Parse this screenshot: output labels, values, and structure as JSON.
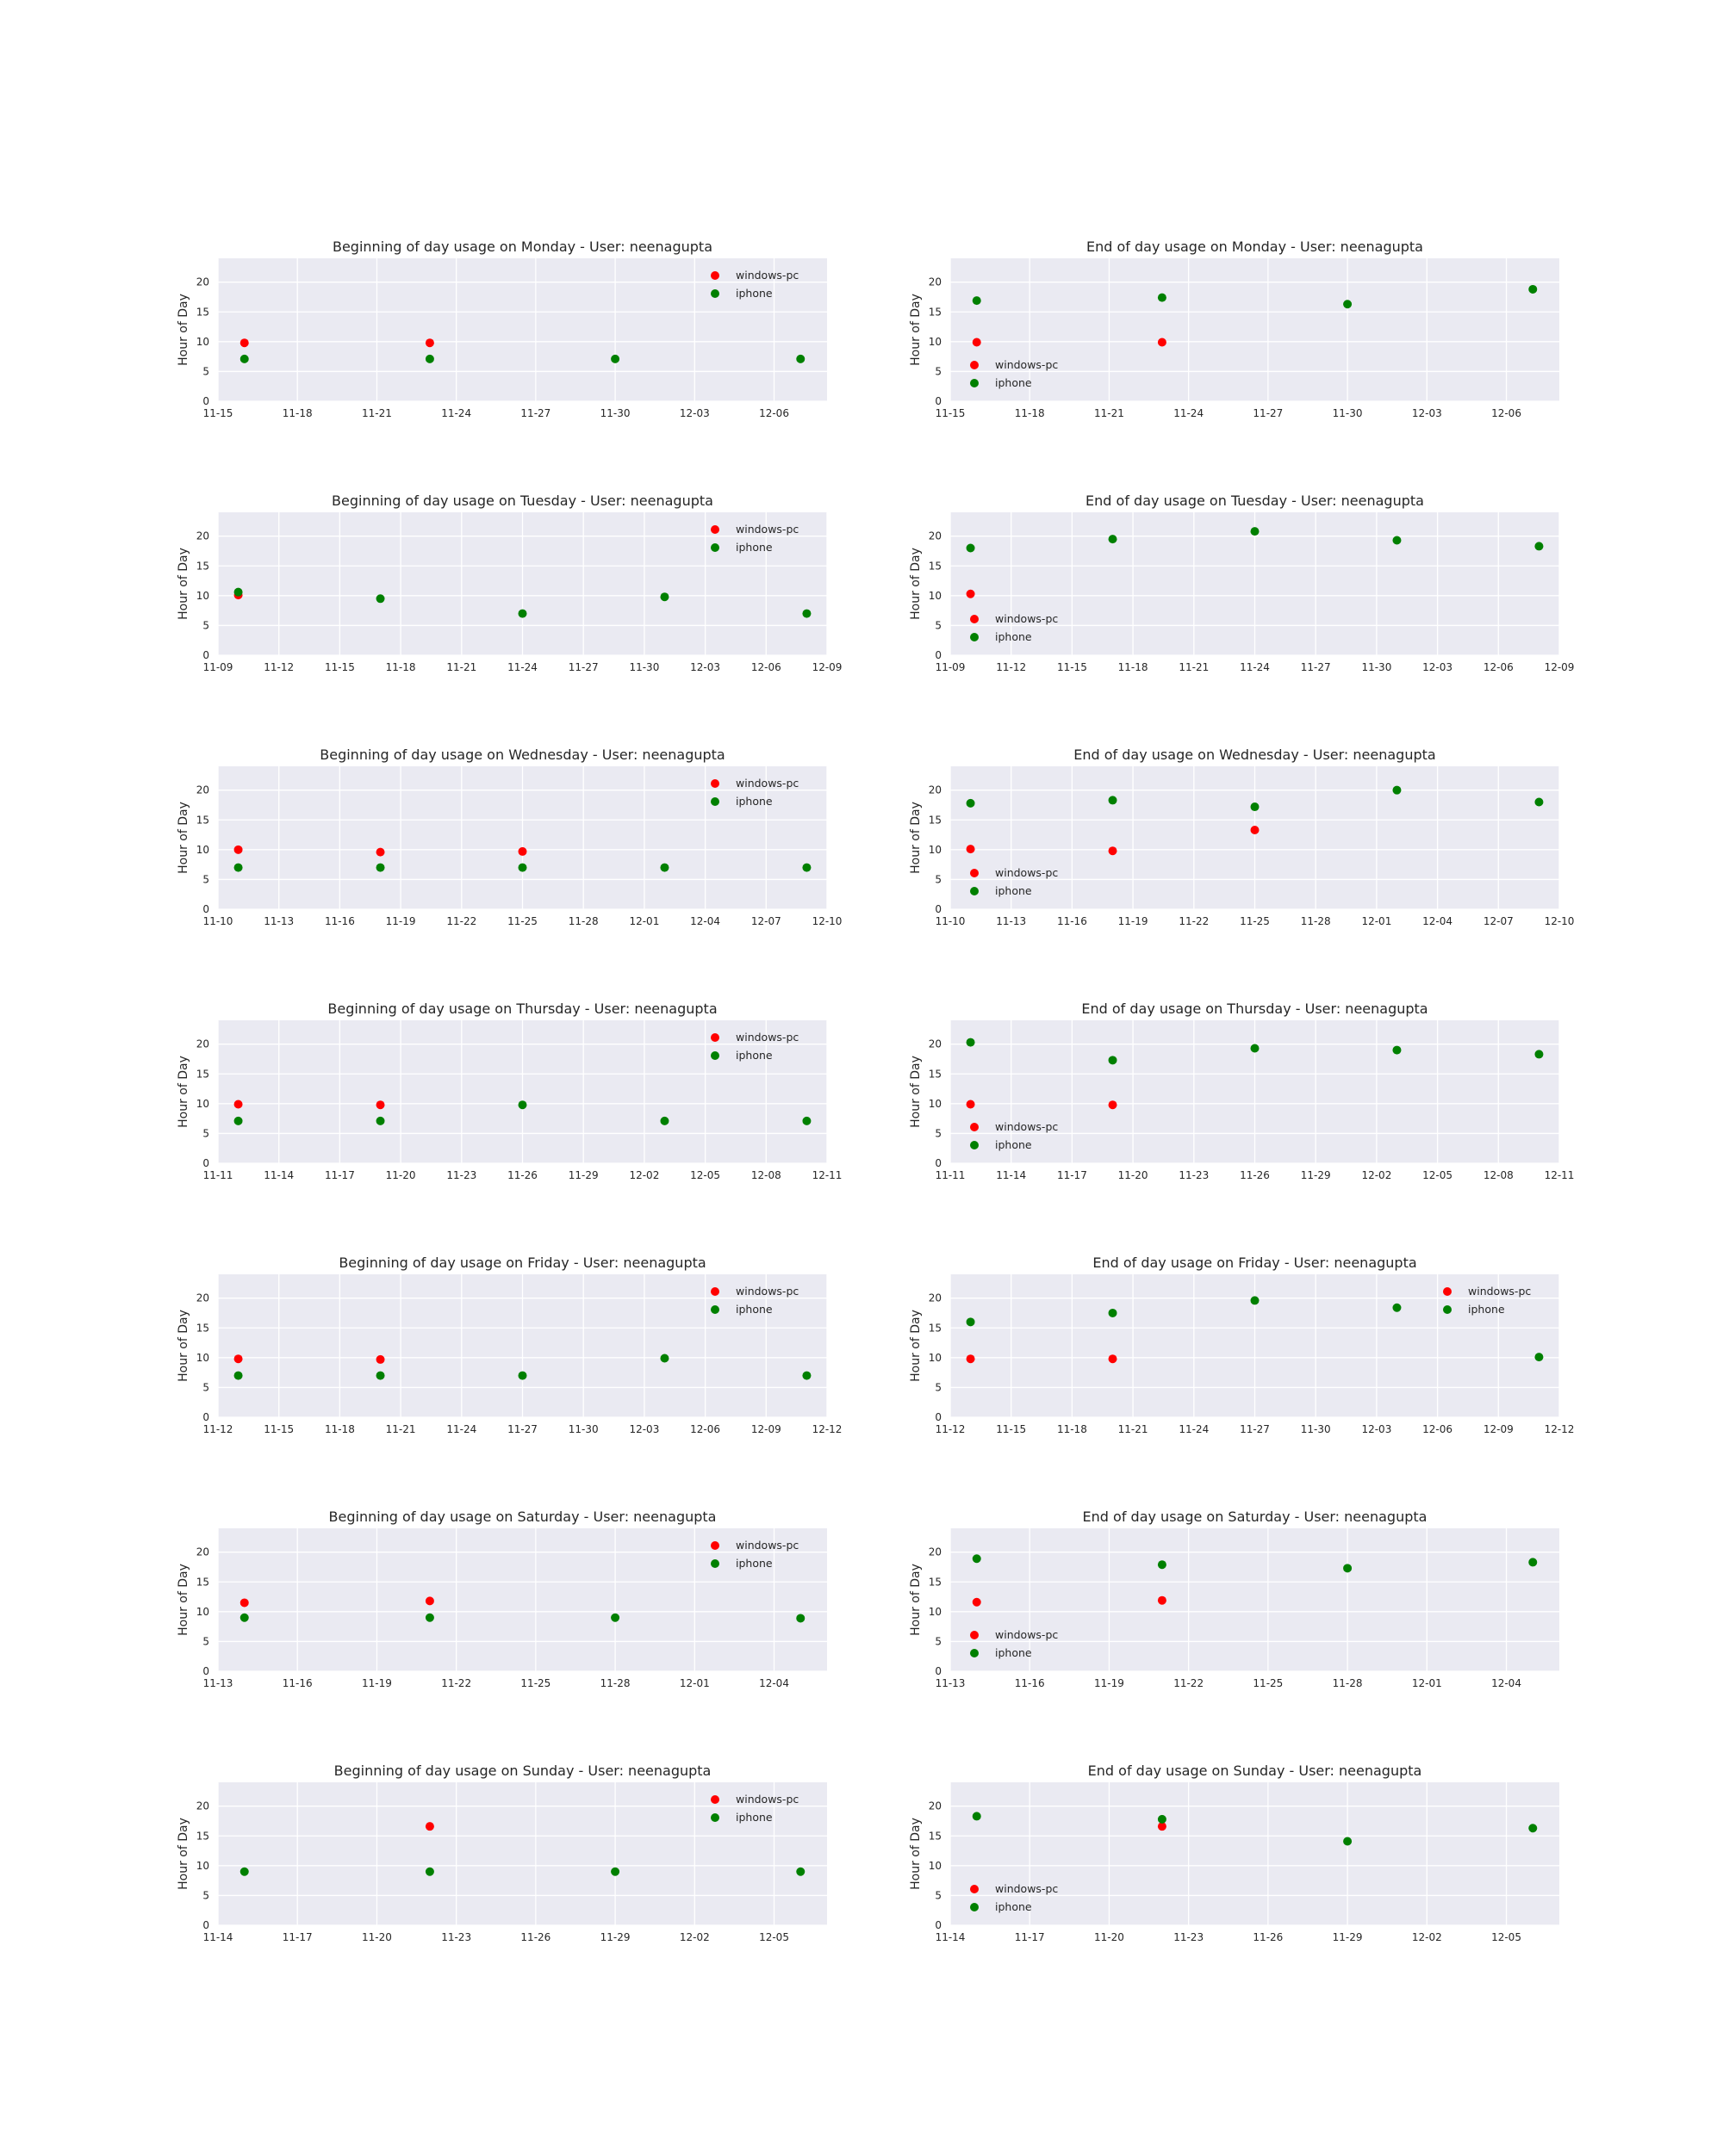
{
  "colors": {
    "windows-pc": "#ff0000",
    "iphone": "#008000",
    "panel_bg": "#eaeaf2",
    "grid": "#ffffff"
  },
  "chart_data": [
    {
      "type": "scatter",
      "title": "Beginning of day usage on Monday - User: neenagupta",
      "xlabel": "",
      "ylabel": "Hour of Day",
      "ylim": [
        0,
        24
      ],
      "yticks": [
        0,
        5,
        10,
        15,
        20
      ],
      "xlim": [
        "11-15",
        "12-08"
      ],
      "xticks": [
        "11-15",
        "11-18",
        "11-21",
        "11-24",
        "11-27",
        "11-30",
        "12-03",
        "12-06"
      ],
      "legend": "top-right",
      "grid": true,
      "series": [
        {
          "name": "windows-pc",
          "color": "#ff0000",
          "x": [
            "11-16",
            "11-23"
          ],
          "y": [
            9.8,
            9.8
          ]
        },
        {
          "name": "iphone",
          "color": "#008000",
          "x": [
            "11-16",
            "11-23",
            "11-30",
            "12-07"
          ],
          "y": [
            7.1,
            7.1,
            7.1,
            7.1
          ]
        }
      ]
    },
    {
      "type": "scatter",
      "title": "End of day usage on Monday - User: neenagupta",
      "xlabel": "",
      "ylabel": "Hour of Day",
      "ylim": [
        0,
        24
      ],
      "yticks": [
        0,
        5,
        10,
        15,
        20
      ],
      "xlim": [
        "11-15",
        "12-08"
      ],
      "xticks": [
        "11-15",
        "11-18",
        "11-21",
        "11-24",
        "11-27",
        "11-30",
        "12-03",
        "12-06"
      ],
      "legend": "bottom-left",
      "grid": true,
      "series": [
        {
          "name": "windows-pc",
          "color": "#ff0000",
          "x": [
            "11-16",
            "11-23"
          ],
          "y": [
            9.9,
            9.9
          ]
        },
        {
          "name": "iphone",
          "color": "#008000",
          "x": [
            "11-16",
            "11-23",
            "11-30",
            "12-07"
          ],
          "y": [
            16.9,
            17.4,
            16.3,
            18.8
          ]
        }
      ]
    },
    {
      "type": "scatter",
      "title": "Beginning of day usage on Tuesday - User: neenagupta",
      "xlabel": "",
      "ylabel": "Hour of Day",
      "ylim": [
        0,
        24
      ],
      "yticks": [
        0,
        5,
        10,
        15,
        20
      ],
      "xlim": [
        "11-09",
        "12-09"
      ],
      "xticks": [
        "11-09",
        "11-12",
        "11-15",
        "11-18",
        "11-21",
        "11-24",
        "11-27",
        "11-30",
        "12-03",
        "12-06",
        "12-09"
      ],
      "legend": "top-right",
      "grid": true,
      "series": [
        {
          "name": "windows-pc",
          "color": "#ff0000",
          "x": [
            "11-10"
          ],
          "y": [
            10.1
          ]
        },
        {
          "name": "iphone",
          "color": "#008000",
          "x": [
            "11-10",
            "11-17",
            "11-24",
            "12-01",
            "12-08"
          ],
          "y": [
            10.6,
            9.5,
            7.0,
            9.8,
            7.0
          ]
        }
      ]
    },
    {
      "type": "scatter",
      "title": "End of day usage on Tuesday - User: neenagupta",
      "xlabel": "",
      "ylabel": "Hour of Day",
      "ylim": [
        0,
        24
      ],
      "yticks": [
        0,
        5,
        10,
        15,
        20
      ],
      "xlim": [
        "11-09",
        "12-09"
      ],
      "xticks": [
        "11-09",
        "11-12",
        "11-15",
        "11-18",
        "11-21",
        "11-24",
        "11-27",
        "11-30",
        "12-03",
        "12-06",
        "12-09"
      ],
      "legend": "bottom-left",
      "grid": true,
      "series": [
        {
          "name": "windows-pc",
          "color": "#ff0000",
          "x": [
            "11-10"
          ],
          "y": [
            10.3
          ]
        },
        {
          "name": "iphone",
          "color": "#008000",
          "x": [
            "11-10",
            "11-17",
            "11-24",
            "12-01",
            "12-08"
          ],
          "y": [
            18.0,
            19.5,
            20.8,
            19.3,
            18.3
          ]
        }
      ]
    },
    {
      "type": "scatter",
      "title": "Beginning of day usage on Wednesday - User: neenagupta",
      "xlabel": "",
      "ylabel": "Hour of Day",
      "ylim": [
        0,
        24
      ],
      "yticks": [
        0,
        5,
        10,
        15,
        20
      ],
      "xlim": [
        "11-10",
        "12-10"
      ],
      "xticks": [
        "11-10",
        "11-13",
        "11-16",
        "11-19",
        "11-22",
        "11-25",
        "11-28",
        "12-01",
        "12-04",
        "12-07",
        "12-10"
      ],
      "legend": "top-right",
      "grid": true,
      "series": [
        {
          "name": "windows-pc",
          "color": "#ff0000",
          "x": [
            "11-11",
            "11-18",
            "11-25"
          ],
          "y": [
            10.0,
            9.6,
            9.7
          ]
        },
        {
          "name": "iphone",
          "color": "#008000",
          "x": [
            "11-11",
            "11-18",
            "11-25",
            "12-02",
            "12-09"
          ],
          "y": [
            7.0,
            7.0,
            7.0,
            7.0,
            7.0
          ]
        }
      ]
    },
    {
      "type": "scatter",
      "title": "End of day usage on Wednesday - User: neenagupta",
      "xlabel": "",
      "ylabel": "Hour of Day",
      "ylim": [
        0,
        24
      ],
      "yticks": [
        0,
        5,
        10,
        15,
        20
      ],
      "xlim": [
        "11-10",
        "12-10"
      ],
      "xticks": [
        "11-10",
        "11-13",
        "11-16",
        "11-19",
        "11-22",
        "11-25",
        "11-28",
        "12-01",
        "12-04",
        "12-07",
        "12-10"
      ],
      "legend": "bottom-left",
      "grid": true,
      "series": [
        {
          "name": "windows-pc",
          "color": "#ff0000",
          "x": [
            "11-11",
            "11-18",
            "11-25"
          ],
          "y": [
            10.1,
            9.8,
            13.3
          ]
        },
        {
          "name": "iphone",
          "color": "#008000",
          "x": [
            "11-11",
            "11-18",
            "11-25",
            "12-02",
            "12-09"
          ],
          "y": [
            17.8,
            18.3,
            17.2,
            20.0,
            18.0
          ]
        }
      ]
    },
    {
      "type": "scatter",
      "title": "Beginning of day usage on Thursday - User: neenagupta",
      "xlabel": "",
      "ylabel": "Hour of Day",
      "ylim": [
        0,
        24
      ],
      "yticks": [
        0,
        5,
        10,
        15,
        20
      ],
      "xlim": [
        "11-11",
        "12-11"
      ],
      "xticks": [
        "11-11",
        "11-14",
        "11-17",
        "11-20",
        "11-23",
        "11-26",
        "11-29",
        "12-02",
        "12-05",
        "12-08",
        "12-11"
      ],
      "legend": "top-right",
      "grid": true,
      "series": [
        {
          "name": "windows-pc",
          "color": "#ff0000",
          "x": [
            "11-12",
            "11-19"
          ],
          "y": [
            9.9,
            9.8
          ]
        },
        {
          "name": "iphone",
          "color": "#008000",
          "x": [
            "11-12",
            "11-19",
            "11-26",
            "12-03",
            "12-10"
          ],
          "y": [
            7.1,
            7.1,
            9.8,
            7.1,
            7.1
          ]
        }
      ]
    },
    {
      "type": "scatter",
      "title": "End of day usage on Thursday - User: neenagupta",
      "xlabel": "",
      "ylabel": "Hour of Day",
      "ylim": [
        0,
        24
      ],
      "yticks": [
        0,
        5,
        10,
        15,
        20
      ],
      "xlim": [
        "11-11",
        "12-11"
      ],
      "xticks": [
        "11-11",
        "11-14",
        "11-17",
        "11-20",
        "11-23",
        "11-26",
        "11-29",
        "12-02",
        "12-05",
        "12-08",
        "12-11"
      ],
      "legend": "bottom-left",
      "grid": true,
      "series": [
        {
          "name": "windows-pc",
          "color": "#ff0000",
          "x": [
            "11-12",
            "11-19"
          ],
          "y": [
            9.9,
            9.8
          ]
        },
        {
          "name": "iphone",
          "color": "#008000",
          "x": [
            "11-12",
            "11-19",
            "11-26",
            "12-03",
            "12-10"
          ],
          "y": [
            20.3,
            17.3,
            19.3,
            19.0,
            18.3
          ]
        }
      ]
    },
    {
      "type": "scatter",
      "title": "Beginning of day usage on Friday - User: neenagupta",
      "xlabel": "",
      "ylabel": "Hour of Day",
      "ylim": [
        0,
        24
      ],
      "yticks": [
        0,
        5,
        10,
        15,
        20
      ],
      "xlim": [
        "11-12",
        "12-12"
      ],
      "xticks": [
        "11-12",
        "11-15",
        "11-18",
        "11-21",
        "11-24",
        "11-27",
        "11-30",
        "12-03",
        "12-06",
        "12-09",
        "12-12"
      ],
      "legend": "top-right",
      "grid": true,
      "series": [
        {
          "name": "windows-pc",
          "color": "#ff0000",
          "x": [
            "11-13",
            "11-20"
          ],
          "y": [
            9.8,
            9.7
          ]
        },
        {
          "name": "iphone",
          "color": "#008000",
          "x": [
            "11-13",
            "11-20",
            "11-27",
            "12-04",
            "12-11"
          ],
          "y": [
            7.0,
            7.0,
            7.0,
            9.9,
            7.0
          ]
        }
      ]
    },
    {
      "type": "scatter",
      "title": "End of day usage on Friday - User: neenagupta",
      "xlabel": "",
      "ylabel": "Hour of Day",
      "ylim": [
        0,
        24
      ],
      "yticks": [
        0,
        5,
        10,
        15,
        20
      ],
      "xlim": [
        "11-12",
        "12-12"
      ],
      "xticks": [
        "11-12",
        "11-15",
        "11-18",
        "11-21",
        "11-24",
        "11-27",
        "11-30",
        "12-03",
        "12-06",
        "12-09",
        "12-12"
      ],
      "legend": "top-right",
      "grid": true,
      "series": [
        {
          "name": "windows-pc",
          "color": "#ff0000",
          "x": [
            "11-13",
            "11-20"
          ],
          "y": [
            9.8,
            9.8
          ]
        },
        {
          "name": "iphone",
          "color": "#008000",
          "x": [
            "11-13",
            "11-20",
            "11-27",
            "12-04",
            "12-11"
          ],
          "y": [
            16.0,
            17.5,
            19.6,
            18.4,
            10.1
          ]
        }
      ]
    },
    {
      "type": "scatter",
      "title": "Beginning of day usage on Saturday - User: neenagupta",
      "xlabel": "",
      "ylabel": "Hour of Day",
      "ylim": [
        0,
        24
      ],
      "yticks": [
        0,
        5,
        10,
        15,
        20
      ],
      "xlim": [
        "11-13",
        "12-06"
      ],
      "xticks": [
        "11-13",
        "11-16",
        "11-19",
        "11-22",
        "11-25",
        "11-28",
        "12-01",
        "12-04"
      ],
      "legend": "top-right",
      "grid": true,
      "series": [
        {
          "name": "windows-pc",
          "color": "#ff0000",
          "x": [
            "11-14",
            "11-21"
          ],
          "y": [
            11.5,
            11.8
          ]
        },
        {
          "name": "iphone",
          "color": "#008000",
          "x": [
            "11-14",
            "11-21",
            "11-28",
            "12-05"
          ],
          "y": [
            9.0,
            9.0,
            9.0,
            8.9
          ]
        }
      ]
    },
    {
      "type": "scatter",
      "title": "End of day usage on Saturday - User: neenagupta",
      "xlabel": "",
      "ylabel": "Hour of Day",
      "ylim": [
        0,
        24
      ],
      "yticks": [
        0,
        5,
        10,
        15,
        20
      ],
      "xlim": [
        "11-13",
        "12-06"
      ],
      "xticks": [
        "11-13",
        "11-16",
        "11-19",
        "11-22",
        "11-25",
        "11-28",
        "12-01",
        "12-04"
      ],
      "legend": "bottom-left",
      "grid": true,
      "series": [
        {
          "name": "windows-pc",
          "color": "#ff0000",
          "x": [
            "11-14",
            "11-21"
          ],
          "y": [
            11.6,
            11.9
          ]
        },
        {
          "name": "iphone",
          "color": "#008000",
          "x": [
            "11-14",
            "11-21",
            "11-28",
            "12-05"
          ],
          "y": [
            18.9,
            17.9,
            17.3,
            18.3
          ]
        }
      ]
    },
    {
      "type": "scatter",
      "title": "Beginning of day usage on Sunday - User: neenagupta",
      "xlabel": "",
      "ylabel": "Hour of Day",
      "ylim": [
        0,
        24
      ],
      "yticks": [
        0,
        5,
        10,
        15,
        20
      ],
      "xlim": [
        "11-14",
        "12-07"
      ],
      "xticks": [
        "11-14",
        "11-17",
        "11-20",
        "11-23",
        "11-26",
        "11-29",
        "12-02",
        "12-05"
      ],
      "legend": "top-right",
      "grid": true,
      "series": [
        {
          "name": "windows-pc",
          "color": "#ff0000",
          "x": [
            "11-22"
          ],
          "y": [
            16.6
          ]
        },
        {
          "name": "iphone",
          "color": "#008000",
          "x": [
            "11-15",
            "11-22",
            "11-29",
            "12-06"
          ],
          "y": [
            9.0,
            9.0,
            9.0,
            9.0
          ]
        }
      ]
    },
    {
      "type": "scatter",
      "title": "End of day usage on Sunday - User: neenagupta",
      "xlabel": "",
      "ylabel": "Hour of Day",
      "ylim": [
        0,
        24
      ],
      "yticks": [
        0,
        5,
        10,
        15,
        20
      ],
      "xlim": [
        "11-14",
        "12-07"
      ],
      "xticks": [
        "11-14",
        "11-17",
        "11-20",
        "11-23",
        "11-26",
        "11-29",
        "12-02",
        "12-05"
      ],
      "legend": "bottom-left",
      "grid": true,
      "series": [
        {
          "name": "windows-pc",
          "color": "#ff0000",
          "x": [
            "11-22"
          ],
          "y": [
            16.6
          ]
        },
        {
          "name": "iphone",
          "color": "#008000",
          "x": [
            "11-15",
            "11-22",
            "11-29",
            "12-06"
          ],
          "y": [
            18.3,
            17.8,
            14.1,
            16.3
          ]
        }
      ]
    }
  ]
}
